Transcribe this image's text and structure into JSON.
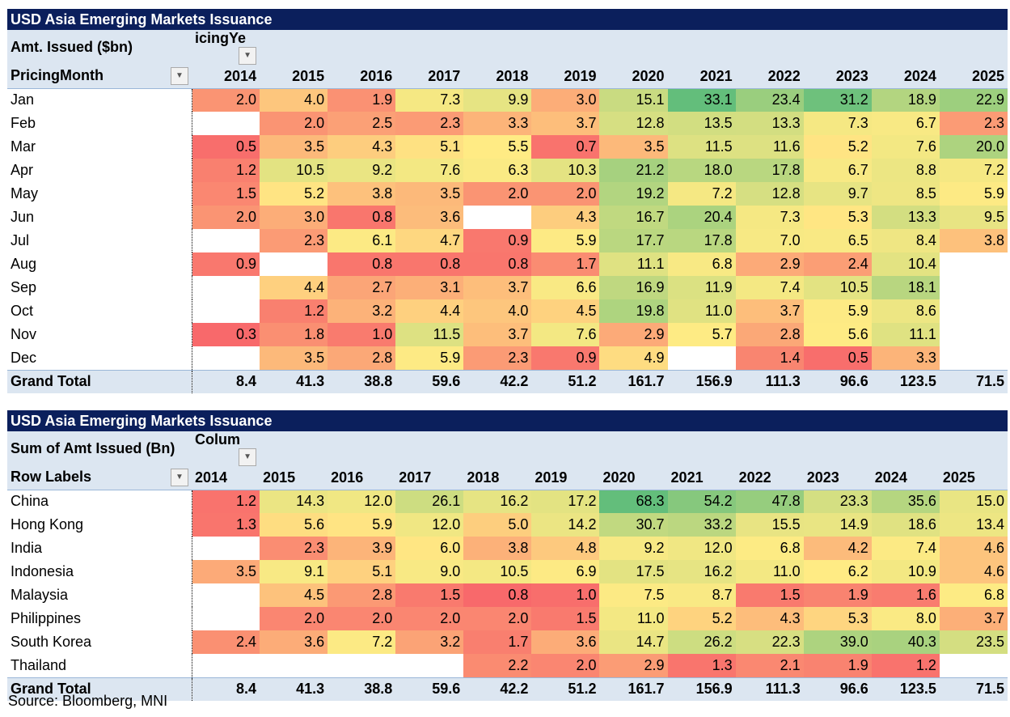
{
  "chart_data": [
    {
      "type": "heatmap",
      "title": "USD Asia Emerging Markets Issuance",
      "value_label": "Amt. Issued ($bn)",
      "column_field": "icingYe",
      "row_field": "PricingMonth",
      "total_label": "Grand Total",
      "columns": [
        "2014",
        "2015",
        "2016",
        "2017",
        "2018",
        "2019",
        "2020",
        "2021",
        "2022",
        "2023",
        "2024",
        "2025"
      ],
      "rows": [
        {
          "label": "Jan",
          "values": [
            "2.0",
            "4.0",
            "1.9",
            "7.3",
            "9.9",
            "3.0",
            "15.1",
            "33.1",
            "23.4",
            "31.2",
            "18.9",
            "22.9"
          ]
        },
        {
          "label": "Feb",
          "values": [
            null,
            "2.0",
            "2.5",
            "2.3",
            "3.3",
            "3.7",
            "12.8",
            "13.5",
            "13.3",
            "7.3",
            "6.7",
            "2.3"
          ]
        },
        {
          "label": "Mar",
          "values": [
            "0.5",
            "3.5",
            "4.3",
            "5.1",
            "5.5",
            "0.7",
            "3.5",
            "11.5",
            "11.6",
            "5.2",
            "7.6",
            "20.0"
          ]
        },
        {
          "label": "Apr",
          "values": [
            "1.2",
            "10.5",
            "9.2",
            "7.6",
            "6.3",
            "10.3",
            "21.2",
            "18.0",
            "17.8",
            "6.7",
            "8.8",
            "7.2"
          ]
        },
        {
          "label": "May",
          "values": [
            "1.5",
            "5.2",
            "3.8",
            "3.5",
            "2.0",
            "2.0",
            "19.2",
            "7.2",
            "12.8",
            "9.7",
            "8.5",
            "5.9"
          ]
        },
        {
          "label": "Jun",
          "values": [
            "2.0",
            "3.0",
            "0.8",
            "3.6",
            null,
            "4.3",
            "16.7",
            "20.4",
            "7.3",
            "5.3",
            "13.3",
            "9.5"
          ]
        },
        {
          "label": "Jul",
          "values": [
            null,
            "2.3",
            "6.1",
            "4.7",
            "0.9",
            "5.9",
            "17.7",
            "17.8",
            "7.0",
            "6.5",
            "8.4",
            "3.8"
          ]
        },
        {
          "label": "Aug",
          "values": [
            "0.9",
            null,
            "0.8",
            "0.8",
            "0.8",
            "1.7",
            "11.1",
            "6.8",
            "2.9",
            "2.4",
            "10.4",
            null
          ]
        },
        {
          "label": "Sep",
          "values": [
            null,
            "4.4",
            "2.7",
            "3.1",
            "3.7",
            "6.6",
            "16.9",
            "11.9",
            "7.4",
            "10.5",
            "18.1",
            null
          ]
        },
        {
          "label": "Oct",
          "values": [
            null,
            "1.2",
            "3.2",
            "4.4",
            "4.0",
            "4.5",
            "19.8",
            "11.0",
            "3.7",
            "5.9",
            "8.6",
            null
          ]
        },
        {
          "label": "Nov",
          "values": [
            "0.3",
            "1.8",
            "1.0",
            "11.5",
            "3.7",
            "7.6",
            "2.9",
            "5.7",
            "2.8",
            "5.6",
            "11.1",
            null
          ]
        },
        {
          "label": "Dec",
          "values": [
            null,
            "3.5",
            "2.8",
            "5.9",
            "2.3",
            "0.9",
            "4.9",
            null,
            "1.4",
            "0.5",
            "3.3",
            null
          ]
        }
      ],
      "totals": [
        "8.4",
        "41.3",
        "38.8",
        "59.6",
        "42.2",
        "51.2",
        "161.7",
        "156.9",
        "111.3",
        "96.6",
        "123.5",
        "71.5"
      ]
    },
    {
      "type": "heatmap",
      "title": "USD Asia Emerging Markets Issuance",
      "value_label": "Sum of Amt Issued (Bn)",
      "column_field": "Colum",
      "row_field": "Row Labels",
      "total_label": "Grand Total",
      "columns": [
        "2014",
        "2015",
        "2016",
        "2017",
        "2018",
        "2019",
        "2020",
        "2021",
        "2022",
        "2023",
        "2024",
        "2025"
      ],
      "rows": [
        {
          "label": "China",
          "values": [
            "1.2",
            "14.3",
            "12.0",
            "26.1",
            "16.2",
            "17.2",
            "68.3",
            "54.2",
            "47.8",
            "23.3",
            "35.6",
            "15.0"
          ]
        },
        {
          "label": "Hong Kong",
          "values": [
            "1.3",
            "5.6",
            "5.9",
            "12.0",
            "5.0",
            "14.2",
            "30.7",
            "33.2",
            "15.5",
            "14.9",
            "18.6",
            "13.4"
          ]
        },
        {
          "label": "India",
          "values": [
            null,
            "2.3",
            "3.9",
            "6.0",
            "3.8",
            "4.8",
            "9.2",
            "12.0",
            "6.8",
            "4.2",
            "7.4",
            "4.6"
          ]
        },
        {
          "label": "Indonesia",
          "values": [
            "3.5",
            "9.1",
            "5.1",
            "9.0",
            "10.5",
            "6.9",
            "17.5",
            "16.2",
            "11.0",
            "6.2",
            "10.9",
            "4.6"
          ]
        },
        {
          "label": "Malaysia",
          "values": [
            null,
            "4.5",
            "2.8",
            "1.5",
            "0.8",
            "1.0",
            "7.5",
            "8.7",
            "1.5",
            "1.9",
            "1.6",
            "6.8"
          ]
        },
        {
          "label": "Philippines",
          "values": [
            null,
            "2.0",
            "2.0",
            "2.0",
            "2.0",
            "1.5",
            "11.0",
            "5.2",
            "4.3",
            "5.3",
            "8.0",
            "3.7"
          ]
        },
        {
          "label": "South Korea",
          "values": [
            "2.4",
            "3.6",
            "7.2",
            "3.2",
            "1.7",
            "3.6",
            "14.7",
            "26.2",
            "22.3",
            "39.0",
            "40.3",
            "23.5"
          ]
        },
        {
          "label": "Thailand",
          "values": [
            null,
            null,
            null,
            null,
            "2.2",
            "2.0",
            "2.9",
            "1.3",
            "2.1",
            "1.9",
            "1.2",
            null
          ]
        }
      ],
      "totals": [
        "8.4",
        "41.3",
        "38.8",
        "59.6",
        "42.2",
        "51.2",
        "161.7",
        "156.9",
        "111.3",
        "96.6",
        "123.5",
        "71.5"
      ]
    }
  ],
  "colors": {
    "low": "#F8696B",
    "mid": "#FFEB84",
    "high": "#63BE7B",
    "header": "#0B1F5C",
    "band": "#DCE6F1"
  },
  "source": "Source: Bloomberg, MNI"
}
